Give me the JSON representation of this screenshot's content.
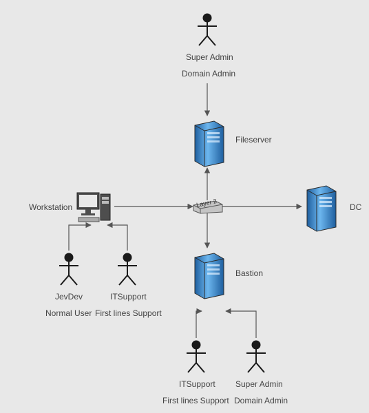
{
  "type": "network",
  "background_color": "#e8e8e8",
  "text_color": "#444444",
  "label_fontsize": 12,
  "colors": {
    "server_dark": "#1f6fb8",
    "server_mid": "#3f8fd8",
    "server_light": "#a7d3f7",
    "server_outline": "#2b2b2b",
    "actor_stroke": "#1a1a1a",
    "arrow_stroke": "#555555",
    "monitor_fill": "#4e4e4e",
    "monitor_screen": "#e9e9e9",
    "switch_fill": "#b5b5b5",
    "switch_stroke": "#555555"
  },
  "nodes": {
    "workstation": {
      "label": "Workstation"
    },
    "fileserver": {
      "label": "Fileserver"
    },
    "dc": {
      "label": "DC"
    },
    "bastion": {
      "label": "Bastion"
    },
    "switch": {
      "label": "Layer 2"
    }
  },
  "actors": {
    "top_super_admin": {
      "name": "Super Admin",
      "role": "Domain Admin"
    },
    "jevdev": {
      "name": "JevDev",
      "role": "Normal User"
    },
    "itsupport_ws": {
      "name": "ITSupport",
      "role": "First lines Support"
    },
    "itsupport_bastion": {
      "name": "ITSupport",
      "role": "First lines Support"
    },
    "super_admin_bastion": {
      "name": "Super Admin",
      "role": "Domain Admin"
    }
  }
}
